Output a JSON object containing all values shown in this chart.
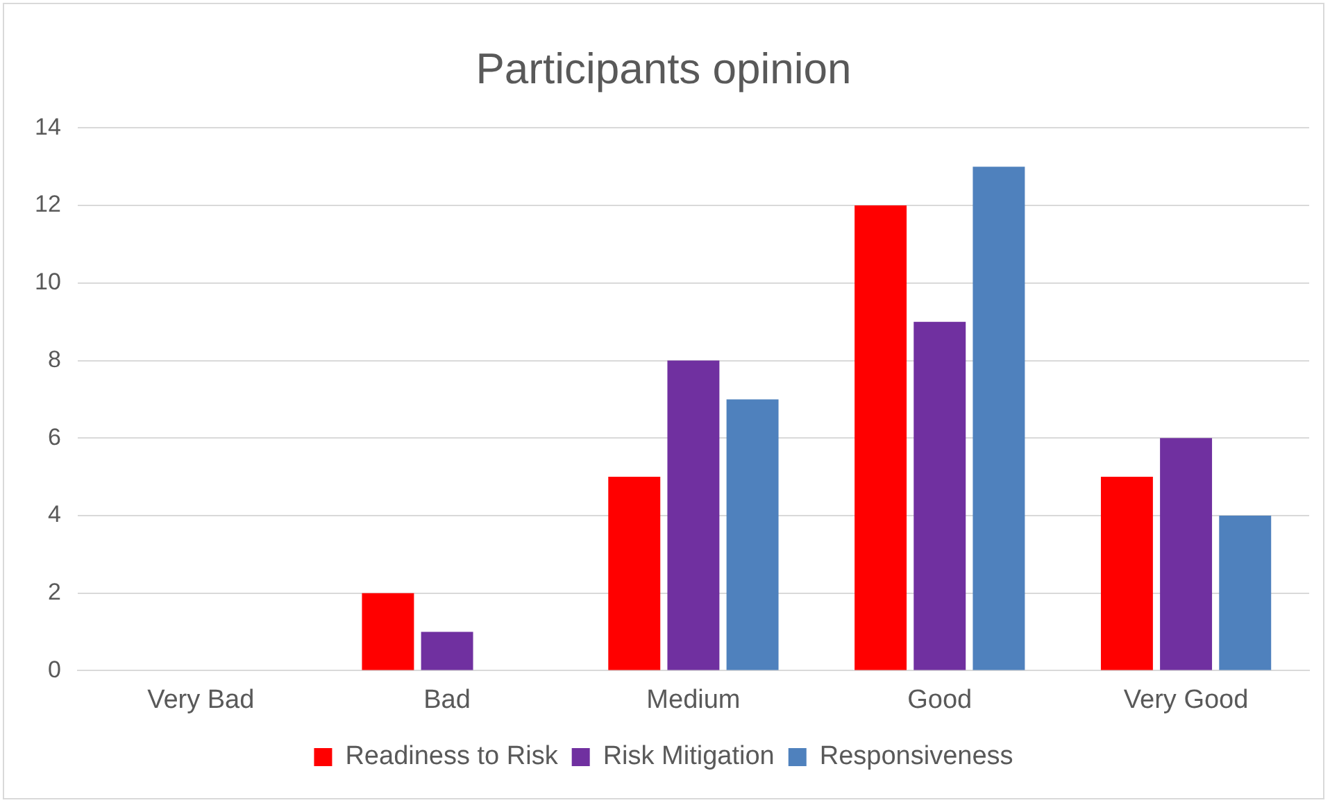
{
  "chart_data": {
    "type": "bar",
    "title": "Participants opinion",
    "categories": [
      "Very Bad",
      "Bad",
      "Medium",
      "Good",
      "Very Good"
    ],
    "series": [
      {
        "name": "Readiness to Risk",
        "color": "#ff0000",
        "values": [
          0,
          2,
          5,
          12,
          5
        ]
      },
      {
        "name": "Risk Mitigation",
        "color": "#7030a0",
        "values": [
          0,
          1,
          8,
          9,
          6
        ]
      },
      {
        "name": "Responsiveness",
        "color": "#4f81bd",
        "values": [
          0,
          0,
          7,
          13,
          4
        ]
      }
    ],
    "ylim": [
      0,
      14
    ],
    "yticks": [
      0,
      2,
      4,
      6,
      8,
      10,
      12,
      14
    ],
    "grid": "y",
    "legend": "bottom"
  }
}
